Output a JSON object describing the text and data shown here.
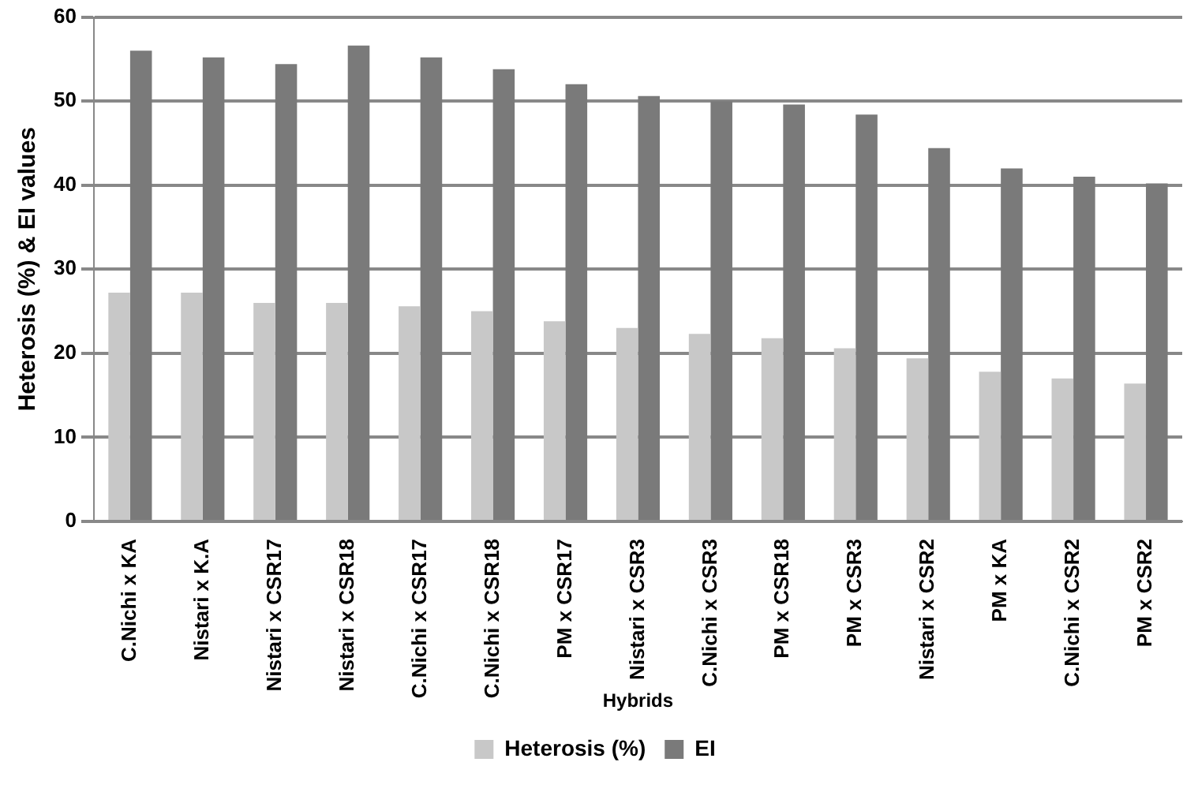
{
  "chart_data": {
    "type": "bar",
    "xlabel": "Hybrids",
    "ylabel": "Heterosis (%) & EI values",
    "categories": [
      "C.Nichi x KA",
      "Nistari x K.A",
      "Nistari x CSR17",
      "Nistari x CSR18",
      "C.Nichi x CSR17",
      "C.Nichi x CSR18",
      "PM x CSR17",
      "Nistari x CSR3",
      "C.Nichi x CSR3",
      "PM x CSR18",
      "PM x CSR3",
      "Nistari x CSR2",
      "PM x KA",
      "C.Nichi x CSR2",
      "PM x CSR2"
    ],
    "series": [
      {
        "name": "Heterosis (%)",
        "color": "#c8c8c8",
        "values": [
          27.2,
          27.2,
          26,
          26,
          25.6,
          25,
          23.8,
          23,
          22.3,
          21.8,
          20.6,
          19.4,
          17.8,
          17,
          16.4
        ]
      },
      {
        "name": "EI",
        "color": "#7a7a7a",
        "values": [
          56,
          55.2,
          54.4,
          56.6,
          55.2,
          53.8,
          52,
          50.6,
          50,
          49.6,
          48.4,
          44.4,
          42,
          41,
          40.2
        ]
      }
    ],
    "ylim": [
      0,
      60
    ],
    "yticks": [
      0,
      10,
      20,
      30,
      40,
      50,
      60
    ],
    "grid": "y",
    "legend": "bottom"
  }
}
